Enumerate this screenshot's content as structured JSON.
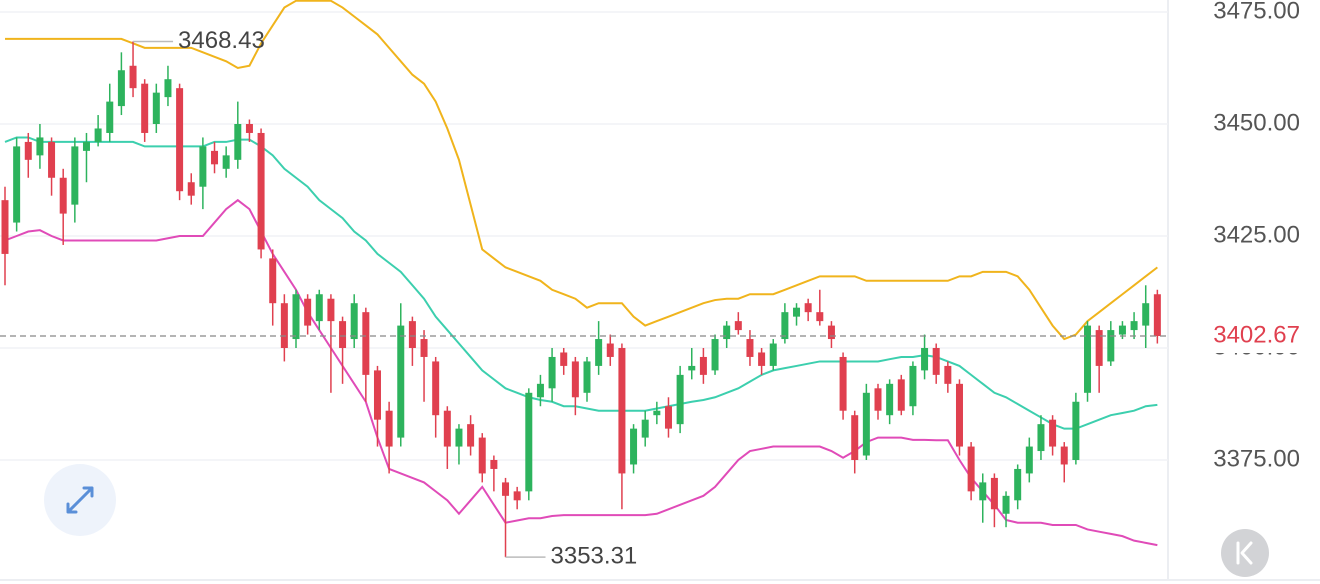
{
  "chart_data": {
    "type": "candlestick",
    "open": [
      3433,
      3428,
      3446,
      3443,
      3446,
      3438,
      3432,
      3444,
      3446,
      3448,
      3454,
      3463,
      3459,
      3450,
      3456,
      3458,
      3437,
      3436,
      3444,
      3440,
      3442,
      3450,
      3448,
      3420,
      3410,
      3402,
      3411,
      3406,
      3411,
      3406,
      3402,
      3408,
      3395,
      3386,
      3380,
      3406,
      3402,
      3397,
      3386,
      3378,
      3383,
      3380,
      3375,
      3370,
      3368,
      3368,
      3389,
      3391,
      3399,
      3397,
      3390,
      3396,
      3401,
      3400,
      3374,
      3380,
      3385,
      3387,
      3383,
      3395,
      3398,
      3395,
      3402,
      3406,
      3402,
      3399,
      3396,
      3402,
      3407,
      3410,
      3408,
      3405,
      3398,
      3385,
      3376,
      3391,
      3385,
      3393,
      3387,
      3395,
      3400,
      3396,
      3392,
      3378,
      3366,
      3371,
      3363,
      3366,
      3372,
      3377,
      3384,
      3378,
      3375,
      3390,
      3404,
      3397,
      3403,
      3404,
      3405,
      3412
    ],
    "high": [
      3436,
      3447,
      3448,
      3450,
      3447,
      3440,
      3447,
      3448,
      3452,
      3459,
      3466,
      3468.43,
      3460,
      3459,
      3463,
      3459,
      3439,
      3447,
      3446,
      3445,
      3455,
      3451,
      3449,
      3422,
      3412,
      3413,
      3412,
      3413,
      3412,
      3407,
      3412,
      3409,
      3396,
      3388,
      3410,
      3407,
      3404,
      3398,
      3387,
      3383,
      3385,
      3381,
      3376,
      3371,
      3369,
      3391,
      3394,
      3400,
      3400,
      3398,
      3398,
      3406,
      3403,
      3401,
      3383,
      3386,
      3388,
      3389,
      3396,
      3400,
      3400,
      3403,
      3406,
      3408,
      3404,
      3400,
      3402,
      3410,
      3410,
      3411,
      3413,
      3406,
      3399,
      3386,
      3392,
      3392,
      3393,
      3394,
      3397,
      3403,
      3401,
      3397,
      3393,
      3379,
      3372,
      3372,
      3368,
      3374,
      3380,
      3385,
      3385,
      3379,
      3390,
      3406,
      3405,
      3406,
      3406,
      3408,
      3414,
      3413
    ],
    "low": [
      3414,
      3426,
      3438,
      3440,
      3434,
      3423,
      3428,
      3437,
      3445,
      3446,
      3452,
      3456,
      3446,
      3448,
      3454,
      3433,
      3432,
      3431,
      3439,
      3438,
      3440,
      3446,
      3420,
      3405,
      3397,
      3400,
      3403,
      3404,
      3390,
      3392,
      3400,
      3388,
      3378,
      3372,
      3378,
      3396,
      3388,
      3380,
      3373,
      3374,
      3376,
      3370,
      3368,
      3353.31,
      3364,
      3366,
      3387,
      3388,
      3394,
      3385,
      3388,
      3394,
      3396,
      3364,
      3372,
      3378,
      3383,
      3380,
      3381,
      3393,
      3392,
      3394,
      3400,
      3403,
      3396,
      3394,
      3395,
      3401,
      3405,
      3406,
      3405,
      3400,
      3384,
      3372,
      3375,
      3384,
      3383,
      3385,
      3385,
      3393,
      3392,
      3390,
      3376,
      3366,
      3361,
      3360,
      3360,
      3364,
      3370,
      3375,
      3376,
      3370,
      3374,
      3388,
      3390,
      3396,
      3402,
      3402,
      3400,
      3401
    ],
    "close": [
      3421,
      3445,
      3442,
      3447,
      3438,
      3430,
      3445,
      3446,
      3449,
      3455,
      3462,
      3458,
      3448,
      3457,
      3460,
      3435,
      3434,
      3445,
      3441,
      3443,
      3450,
      3448,
      3422,
      3410,
      3400,
      3412,
      3405,
      3412,
      3406,
      3400,
      3410,
      3394,
      3384,
      3378,
      3405,
      3400,
      3398,
      3385,
      3378,
      3382,
      3378,
      3372,
      3373,
      3367,
      3366,
      3390,
      3392,
      3398,
      3396,
      3389,
      3397,
      3402,
      3398,
      3372,
      3382,
      3384,
      3386,
      3382,
      3394,
      3396,
      3394,
      3402,
      3405,
      3404,
      3398,
      3396,
      3401,
      3408,
      3409,
      3408,
      3406,
      3402,
      3386,
      3375,
      3390,
      3386,
      3392,
      3386,
      3396,
      3400,
      3394,
      3392,
      3378,
      3368,
      3370,
      3364,
      3367,
      3373,
      3378,
      3383,
      3378,
      3374,
      3388,
      3405,
      3396,
      3404,
      3405,
      3406,
      3410,
      3402.67
    ],
    "up_color": "#2db35d",
    "down_color": "#e0404f",
    "overlays": [
      {
        "color": "#f0b41c",
        "values": [
          3469,
          3469,
          3469,
          3469,
          3469,
          3469,
          3469,
          3469,
          3469,
          3469,
          3469,
          3468,
          3467,
          3467,
          3467,
          3467,
          3467,
          3466,
          3465,
          3464,
          3462.5,
          3463,
          3468,
          3472,
          3476,
          3477.5,
          3477.5,
          3477.5,
          3477.5,
          3476,
          3474,
          3472,
          3470,
          3467,
          3464,
          3461,
          3459,
          3455,
          3449,
          3442,
          3432,
          3422,
          3420,
          3418,
          3417,
          3416,
          3415,
          3413,
          3412,
          3411,
          3409,
          3410,
          3410,
          3410,
          3407,
          3405,
          3406,
          3407,
          3408,
          3409,
          3410,
          3410.7,
          3411,
          3411,
          3412,
          3412,
          3412,
          3413,
          3414,
          3415,
          3416,
          3416,
          3416,
          3416,
          3415,
          3415,
          3415,
          3415,
          3415,
          3415,
          3415,
          3415,
          3416,
          3416,
          3417,
          3417,
          3417,
          3416,
          3413,
          3409,
          3405,
          3402,
          3403,
          3406,
          3408,
          3410,
          3412,
          3414,
          3416,
          3418
        ]
      },
      {
        "color": "#3ccfae",
        "values": [
          3446,
          3447,
          3447,
          3446,
          3446,
          3446,
          3446,
          3446,
          3446,
          3446,
          3446,
          3446,
          3445,
          3445,
          3445,
          3445,
          3445,
          3445,
          3446,
          3446,
          3446.5,
          3446.5,
          3445,
          3443,
          3440,
          3438,
          3436,
          3433,
          3431,
          3429,
          3426,
          3424,
          3421,
          3419,
          3417,
          3414,
          3411,
          3407,
          3404,
          3401,
          3398,
          3395,
          3393,
          3391,
          3390,
          3389,
          3388.4,
          3388,
          3387,
          3387,
          3386.5,
          3386,
          3386,
          3386,
          3386,
          3386,
          3386.5,
          3387,
          3387.5,
          3388,
          3388.4,
          3389,
          3390,
          3391,
          3392.5,
          3394,
          3395,
          3395.5,
          3396,
          3396.5,
          3397,
          3397,
          3397,
          3397,
          3397,
          3397,
          3397.5,
          3398,
          3398,
          3398.4,
          3398,
          3397,
          3396,
          3394,
          3392,
          3390,
          3389,
          3387.5,
          3386,
          3384.5,
          3383,
          3382,
          3382,
          3383,
          3384,
          3385,
          3385.5,
          3386,
          3387,
          3387.3
        ]
      },
      {
        "color": "#e04bb8",
        "values": [
          3424,
          3425,
          3426,
          3426.3,
          3425,
          3424,
          3424,
          3424,
          3424,
          3424,
          3424,
          3424,
          3424,
          3424,
          3424.5,
          3425,
          3425,
          3425,
          3428,
          3431,
          3433,
          3431,
          3426,
          3421,
          3417,
          3413,
          3408,
          3404,
          3400,
          3396,
          3392,
          3388,
          3380,
          3373,
          3372,
          3371,
          3370,
          3368,
          3366,
          3363,
          3366,
          3369,
          3365,
          3361,
          3361.5,
          3362,
          3362,
          3362.5,
          3362.7,
          3362.7,
          3362.7,
          3362.7,
          3362.7,
          3362.7,
          3362.7,
          3362.7,
          3363,
          3364,
          3365,
          3366,
          3367,
          3369,
          3372,
          3375,
          3377,
          3377.5,
          3378,
          3378,
          3378,
          3378,
          3378,
          3377,
          3375.5,
          3377,
          3379,
          3380,
          3380,
          3380,
          3379.5,
          3379.5,
          3379.4,
          3379.4,
          3375,
          3371,
          3368,
          3365,
          3361.6,
          3361,
          3361,
          3361,
          3360.5,
          3360.5,
          3360.5,
          3359.5,
          3359,
          3358.5,
          3358,
          3357,
          3356.5,
          3356
        ]
      }
    ],
    "ylim": [
      3347.32,
      3477.68
    ],
    "yticks": [
      {
        "value": 3375,
        "label": "3375.00"
      },
      {
        "value": 3400,
        "label": "3400.00"
      },
      {
        "value": 3425,
        "label": "3425.00"
      },
      {
        "value": 3450,
        "label": "3450.00"
      },
      {
        "value": 3475,
        "label": "3475.00"
      }
    ],
    "grid": true,
    "last_price_line": true
  }
}
